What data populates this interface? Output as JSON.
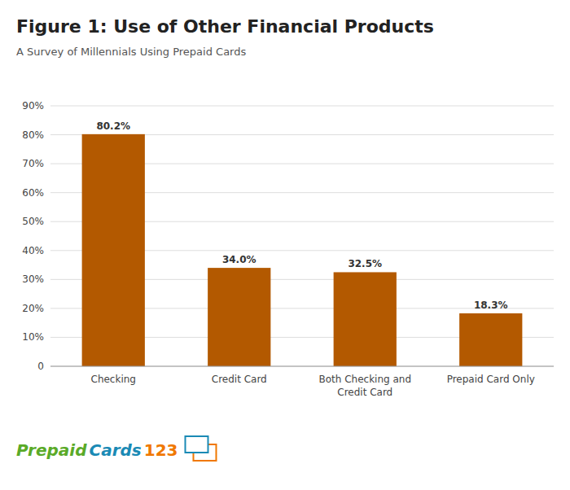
{
  "chart_data": {
    "type": "bar",
    "title": "Figure 1: Use of Other Financial Products",
    "subtitle": "A Survey of Millennials Using Prepaid Cards",
    "categories": [
      "Checking",
      "Credit Card",
      "Both Checking and\nCredit Card",
      "Prepaid Card Only"
    ],
    "values": [
      80.2,
      34.0,
      32.5,
      18.3
    ],
    "value_labels": [
      "80.2%",
      "34.0%",
      "32.5%",
      "18.3%"
    ],
    "data_labels": true,
    "color": "#b35900",
    "ylim": [
      0,
      90
    ],
    "yticks": [
      0,
      {
        "value": 10,
        "label": "10%"
      },
      {
        "value": 20,
        "label": "20%"
      },
      {
        "value": 30,
        "label": "30%"
      },
      {
        "value": 40,
        "label": "40%"
      },
      {
        "value": 50,
        "label": "50%"
      },
      {
        "value": 60,
        "label": "60%"
      },
      {
        "value": 70,
        "label": "70%"
      },
      {
        "value": 80,
        "label": "80%"
      },
      {
        "value": 90,
        "label": "90%"
      }
    ],
    "grid": true,
    "annotations": [
      {
        "text": "Prepaid",
        "color": "#5aaa28"
      },
      {
        "text": "Cards",
        "color": "#1a8ab5"
      },
      {
        "text": "123",
        "color": "#f07800"
      }
    ]
  }
}
